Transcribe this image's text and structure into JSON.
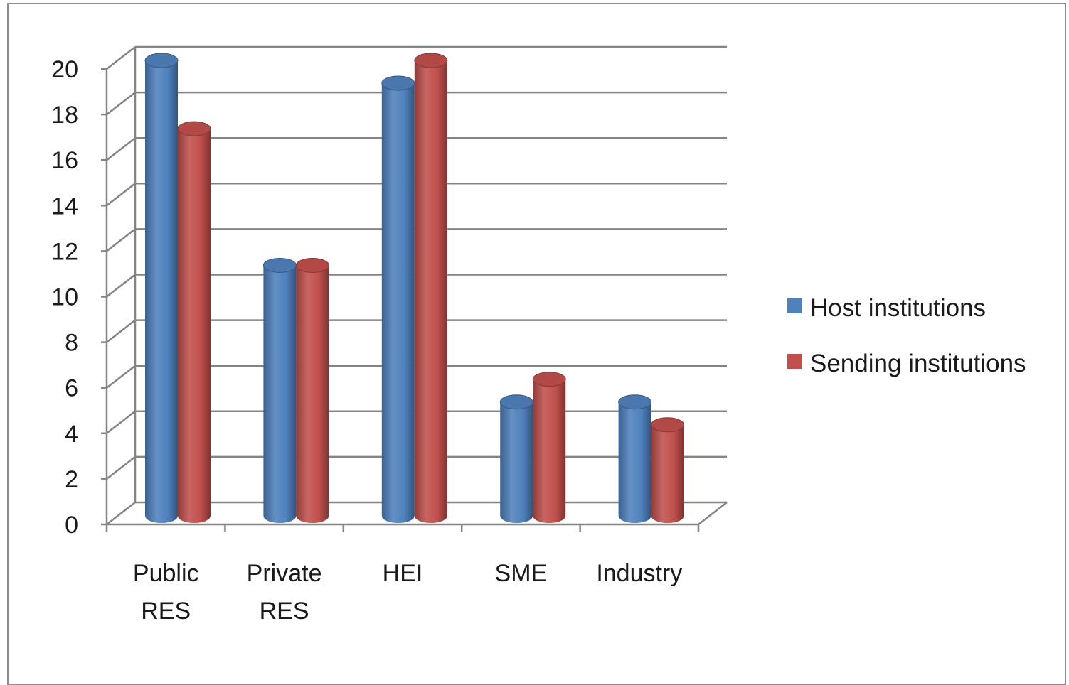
{
  "chart_data": {
    "type": "bar",
    "style": "3d-cylinder",
    "categories": [
      [
        "Public",
        "RES"
      ],
      [
        "Private",
        "RES"
      ],
      [
        "HEI"
      ],
      [
        "SME"
      ],
      [
        "Industry"
      ]
    ],
    "series": [
      {
        "name": "Host institutions",
        "color": "#4f81bd",
        "values": [
          20,
          11,
          19,
          5,
          5
        ]
      },
      {
        "name": "Sending institutions",
        "color": "#c0504d",
        "values": [
          17,
          11,
          20,
          6,
          4
        ]
      }
    ],
    "ylim": [
      0,
      20
    ],
    "yticks": [
      0,
      2,
      4,
      6,
      8,
      10,
      12,
      14,
      16,
      18,
      20
    ],
    "grid": true,
    "legend_position": "right"
  }
}
